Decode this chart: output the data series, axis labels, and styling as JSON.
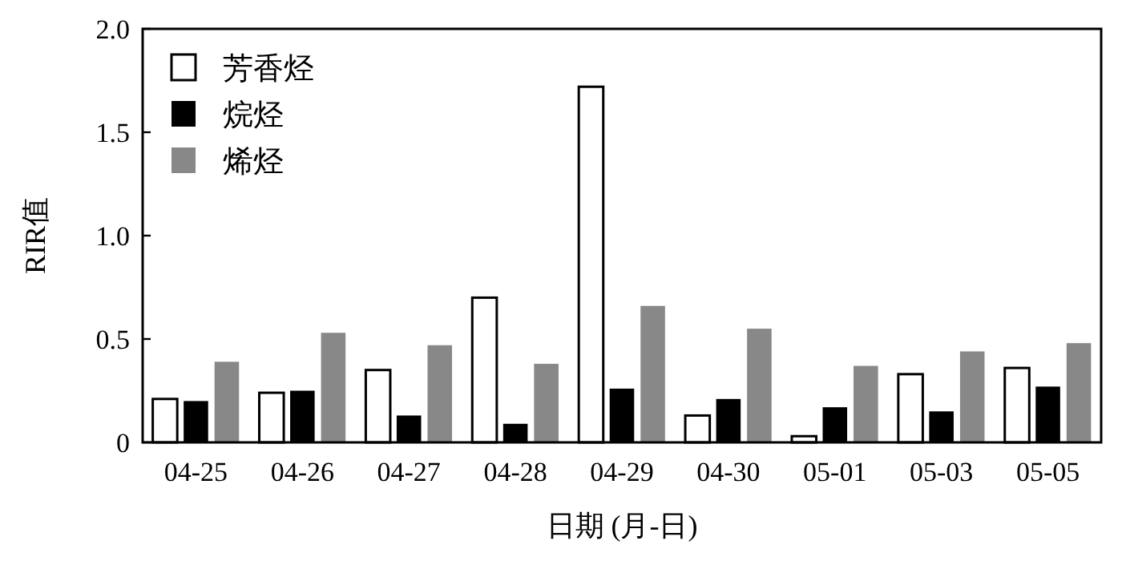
{
  "chart_data": {
    "type": "bar",
    "xlabel": "日期 (月-日)",
    "ylabel": "RIR值",
    "categories": [
      "04-25",
      "04-26",
      "04-27",
      "04-28",
      "04-29",
      "04-30",
      "05-01",
      "05-03",
      "05-05"
    ],
    "series": [
      {
        "name": "芳香烃",
        "color": "#ffffff",
        "values": [
          0.21,
          0.24,
          0.35,
          0.7,
          1.72,
          0.13,
          0.03,
          0.33,
          0.36
        ]
      },
      {
        "name": "烷烃",
        "color": "#000000",
        "values": [
          0.2,
          0.25,
          0.13,
          0.09,
          0.26,
          0.21,
          0.17,
          0.15,
          0.27
        ]
      },
      {
        "name": "烯烃",
        "color": "#888888",
        "values": [
          0.39,
          0.53,
          0.47,
          0.38,
          0.66,
          0.55,
          0.37,
          0.44,
          0.48
        ]
      }
    ],
    "ylim": [
      0,
      2.0
    ],
    "yticks": [
      0,
      0.5,
      {
        "value": 1,
        "label": "1.0"
      },
      1.5,
      {
        "value": 2,
        "label": "2.0"
      }
    ],
    "legend": "top left",
    "grid": false
  }
}
